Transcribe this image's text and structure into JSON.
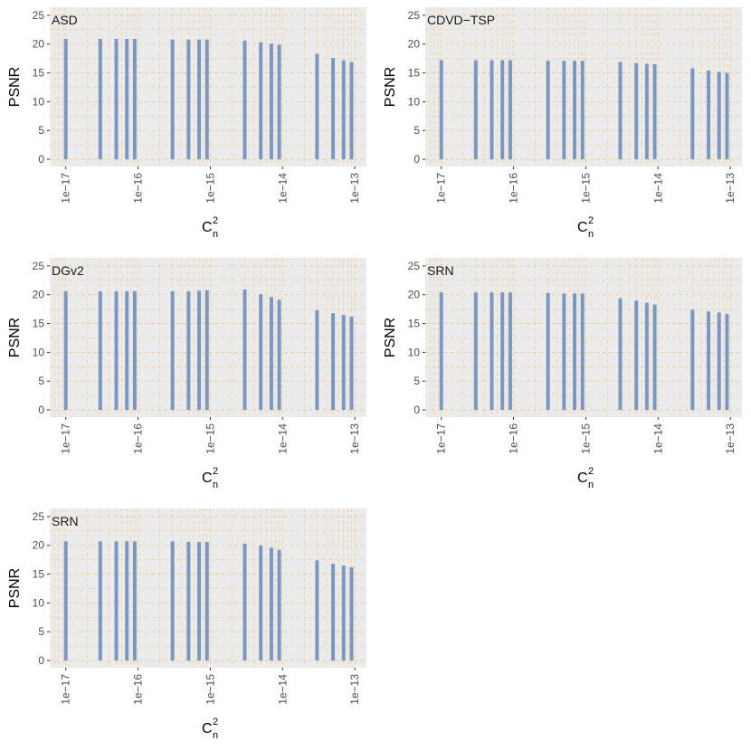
{
  "chart_data": [
    {
      "type": "bar",
      "title": "ASD",
      "xlabel": {
        "base": "C",
        "sup": "2",
        "sub": "n"
      },
      "ylabel": "PSNR",
      "log_x": true,
      "grid": true,
      "color": "#7a98c0",
      "x": [
        1e-17,
        3e-17,
        5e-17,
        7e-17,
        9e-17,
        3e-16,
        5e-16,
        7e-16,
        9e-16,
        3e-15,
        5e-15,
        7e-15,
        9e-15,
        3e-14,
        5e-14,
        7e-14,
        9e-14
      ],
      "values": [
        20.9,
        20.9,
        20.9,
        20.9,
        20.9,
        20.8,
        20.8,
        20.8,
        20.8,
        20.6,
        20.3,
        20.1,
        19.9,
        18.3,
        17.6,
        17.2,
        16.9
      ],
      "xlim": [
        6e-18,
        1.45e-13
      ],
      "ylim": [
        -1.25,
        26.4
      ],
      "xticks": [
        {
          "value": 1e-17,
          "label": "1e−17"
        },
        {
          "value": 1e-16,
          "label": "1e−16"
        },
        {
          "value": 1e-15,
          "label": "1e−15"
        },
        {
          "value": 1e-14,
          "label": "1e−14"
        },
        {
          "value": 1e-13,
          "label": "1e−13"
        }
      ],
      "yticks": [
        0,
        5,
        10,
        15,
        20,
        25
      ]
    },
    {
      "type": "bar",
      "title": "CDVD−TSP",
      "xlabel": {
        "base": "C",
        "sup": "2",
        "sub": "n"
      },
      "ylabel": "PSNR",
      "log_x": true,
      "grid": true,
      "color": "#7a98c0",
      "x": [
        1e-17,
        3e-17,
        5e-17,
        7e-17,
        9e-17,
        3e-16,
        5e-16,
        7e-16,
        9e-16,
        3e-15,
        5e-15,
        7e-15,
        9e-15,
        3e-14,
        5e-14,
        7e-14,
        9e-14
      ],
      "values": [
        17.2,
        17.2,
        17.2,
        17.2,
        17.2,
        17.1,
        17.1,
        17.1,
        17.1,
        16.9,
        16.7,
        16.6,
        16.5,
        15.8,
        15.4,
        15.2,
        15.0
      ],
      "xlim": [
        6e-18,
        1.45e-13
      ],
      "ylim": [
        -1.25,
        26.4
      ],
      "xticks": [
        {
          "value": 1e-17,
          "label": "1e−17"
        },
        {
          "value": 1e-16,
          "label": "1e−16"
        },
        {
          "value": 1e-15,
          "label": "1e−15"
        },
        {
          "value": 1e-14,
          "label": "1e−14"
        },
        {
          "value": 1e-13,
          "label": "1e−13"
        }
      ],
      "yticks": [
        0,
        5,
        10,
        15,
        20,
        25
      ]
    },
    {
      "type": "bar",
      "title": "DGv2",
      "xlabel": {
        "base": "C",
        "sup": "2",
        "sub": "n"
      },
      "ylabel": "PSNR",
      "log_x": true,
      "grid": true,
      "color": "#7a98c0",
      "x": [
        1e-17,
        3e-17,
        5e-17,
        7e-17,
        9e-17,
        3e-16,
        5e-16,
        7e-16,
        9e-16,
        3e-15,
        5e-15,
        7e-15,
        9e-15,
        3e-14,
        5e-14,
        7e-14,
        9e-14
      ],
      "values": [
        20.6,
        20.6,
        20.6,
        20.6,
        20.6,
        20.6,
        20.6,
        20.7,
        20.8,
        20.9,
        20.1,
        19.6,
        19.1,
        17.3,
        16.8,
        16.5,
        16.2
      ],
      "xlim": [
        6e-18,
        1.45e-13
      ],
      "ylim": [
        -1.25,
        26.4
      ],
      "xticks": [
        {
          "value": 1e-17,
          "label": "1e−17"
        },
        {
          "value": 1e-16,
          "label": "1e−16"
        },
        {
          "value": 1e-15,
          "label": "1e−15"
        },
        {
          "value": 1e-14,
          "label": "1e−14"
        },
        {
          "value": 1e-13,
          "label": "1e−13"
        }
      ],
      "yticks": [
        0,
        5,
        10,
        15,
        20,
        25
      ]
    },
    {
      "type": "bar",
      "title": "SRN",
      "xlabel": {
        "base": "C",
        "sup": "2",
        "sub": "n"
      },
      "ylabel": "PSNR",
      "log_x": true,
      "grid": true,
      "color": "#7a98c0",
      "x": [
        1e-17,
        3e-17,
        5e-17,
        7e-17,
        9e-17,
        3e-16,
        5e-16,
        7e-16,
        9e-16,
        3e-15,
        5e-15,
        7e-15,
        9e-15,
        3e-14,
        5e-14,
        7e-14,
        9e-14
      ],
      "values": [
        20.4,
        20.4,
        20.4,
        20.4,
        20.4,
        20.3,
        20.2,
        20.2,
        20.2,
        19.4,
        19.0,
        18.6,
        18.3,
        17.4,
        17.1,
        16.9,
        16.7
      ],
      "xlim": [
        6e-18,
        1.45e-13
      ],
      "ylim": [
        -1.25,
        26.4
      ],
      "xticks": [
        {
          "value": 1e-17,
          "label": "1e−17"
        },
        {
          "value": 1e-16,
          "label": "1e−16"
        },
        {
          "value": 1e-15,
          "label": "1e−15"
        },
        {
          "value": 1e-14,
          "label": "1e−14"
        },
        {
          "value": 1e-13,
          "label": "1e−13"
        }
      ],
      "yticks": [
        0,
        5,
        10,
        15,
        20,
        25
      ]
    },
    {
      "type": "bar",
      "title": "SRN",
      "xlabel": {
        "base": "C",
        "sup": "2",
        "sub": "n"
      },
      "ylabel": "PSNR",
      "log_x": true,
      "grid": true,
      "color": "#7a98c0",
      "x": [
        1e-17,
        3e-17,
        5e-17,
        7e-17,
        9e-17,
        3e-16,
        5e-16,
        7e-16,
        9e-16,
        3e-15,
        5e-15,
        7e-15,
        9e-15,
        3e-14,
        5e-14,
        7e-14,
        9e-14
      ],
      "values": [
        20.7,
        20.7,
        20.7,
        20.7,
        20.7,
        20.7,
        20.6,
        20.6,
        20.6,
        20.3,
        20.0,
        19.6,
        19.2,
        17.4,
        16.8,
        16.5,
        16.2
      ],
      "xlim": [
        6e-18,
        1.45e-13
      ],
      "ylim": [
        -1.25,
        26.4
      ],
      "xticks": [
        {
          "value": 1e-17,
          "label": "1e−17"
        },
        {
          "value": 1e-16,
          "label": "1e−16"
        },
        {
          "value": 1e-15,
          "label": "1e−15"
        },
        {
          "value": 1e-14,
          "label": "1e−14"
        },
        {
          "value": 1e-13,
          "label": "1e−13"
        }
      ],
      "yticks": [
        0,
        5,
        10,
        15,
        20,
        25
      ]
    }
  ]
}
